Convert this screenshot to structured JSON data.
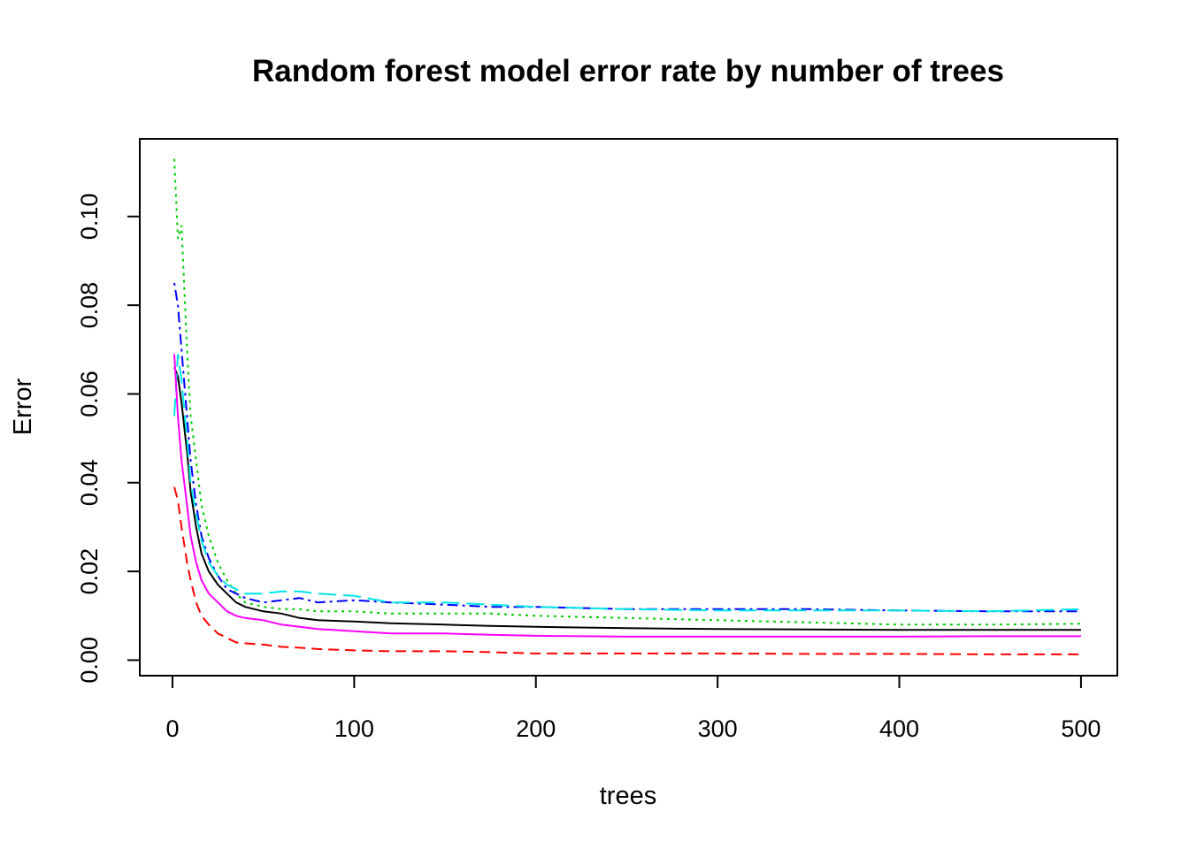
{
  "chart_data": {
    "type": "line",
    "title": "Random forest model error rate by number of trees",
    "xlabel": "trees",
    "ylabel": "Error",
    "xlim": [
      -18,
      520
    ],
    "ylim": [
      -0.0035,
      0.1175
    ],
    "xticks": [
      0,
      100,
      200,
      300,
      400,
      500
    ],
    "xtick_labels": [
      "0",
      "100",
      "200",
      "300",
      "400",
      "500"
    ],
    "yticks": [
      0.0,
      0.02,
      0.04,
      0.06,
      0.08,
      0.1
    ],
    "ytick_labels": [
      "0.00",
      "0.02",
      "0.04",
      "0.06",
      "0.08",
      "0.10"
    ],
    "grid": false,
    "legend": "none",
    "series": [
      {
        "color": "#000000",
        "dash": "solid",
        "points": [
          [
            1,
            0.066
          ],
          [
            3,
            0.064
          ],
          [
            5,
            0.058
          ],
          [
            8,
            0.047
          ],
          [
            10,
            0.038
          ],
          [
            13,
            0.03
          ],
          [
            16,
            0.024
          ],
          [
            20,
            0.02
          ],
          [
            25,
            0.017
          ],
          [
            30,
            0.015
          ],
          [
            35,
            0.013
          ],
          [
            40,
            0.012
          ],
          [
            50,
            0.011
          ],
          [
            60,
            0.0105
          ],
          [
            70,
            0.0095
          ],
          [
            80,
            0.009
          ],
          [
            100,
            0.0087
          ],
          [
            120,
            0.0083
          ],
          [
            150,
            0.008
          ],
          [
            175,
            0.0077
          ],
          [
            200,
            0.0075
          ],
          [
            250,
            0.0072
          ],
          [
            300,
            0.007
          ],
          [
            350,
            0.0069
          ],
          [
            400,
            0.0068
          ],
          [
            450,
            0.0068
          ],
          [
            500,
            0.0068
          ]
        ]
      },
      {
        "color": "#ff0000",
        "dash": "dashed",
        "points": [
          [
            1,
            0.039
          ],
          [
            3,
            0.036
          ],
          [
            5,
            0.03
          ],
          [
            8,
            0.022
          ],
          [
            10,
            0.018
          ],
          [
            13,
            0.013
          ],
          [
            16,
            0.01
          ],
          [
            20,
            0.008
          ],
          [
            25,
            0.006
          ],
          [
            30,
            0.005
          ],
          [
            35,
            0.004
          ],
          [
            40,
            0.0038
          ],
          [
            50,
            0.0035
          ],
          [
            60,
            0.003
          ],
          [
            70,
            0.0028
          ],
          [
            80,
            0.0025
          ],
          [
            100,
            0.0022
          ],
          [
            120,
            0.002
          ],
          [
            150,
            0.002
          ],
          [
            175,
            0.0018
          ],
          [
            200,
            0.0015
          ],
          [
            250,
            0.0015
          ],
          [
            300,
            0.0015
          ],
          [
            350,
            0.0014
          ],
          [
            400,
            0.0014
          ],
          [
            450,
            0.0013
          ],
          [
            500,
            0.0013
          ]
        ]
      },
      {
        "color": "#00cc00",
        "dash": "dotted",
        "points": [
          [
            1,
            0.113
          ],
          [
            3,
            0.095
          ],
          [
            5,
            0.098
          ],
          [
            8,
            0.07
          ],
          [
            10,
            0.055
          ],
          [
            13,
            0.045
          ],
          [
            16,
            0.035
          ],
          [
            20,
            0.028
          ],
          [
            25,
            0.022
          ],
          [
            30,
            0.018
          ],
          [
            35,
            0.015
          ],
          [
            40,
            0.013
          ],
          [
            50,
            0.012
          ],
          [
            60,
            0.0115
          ],
          [
            70,
            0.0115
          ],
          [
            80,
            0.011
          ],
          [
            100,
            0.011
          ],
          [
            120,
            0.0105
          ],
          [
            150,
            0.0105
          ],
          [
            175,
            0.0105
          ],
          [
            200,
            0.01
          ],
          [
            250,
            0.0095
          ],
          [
            300,
            0.009
          ],
          [
            350,
            0.0085
          ],
          [
            400,
            0.008
          ],
          [
            450,
            0.008
          ],
          [
            500,
            0.0082
          ]
        ]
      },
      {
        "color": "#0000ff",
        "dash": "dotdash",
        "points": [
          [
            1,
            0.085
          ],
          [
            3,
            0.08
          ],
          [
            5,
            0.07
          ],
          [
            8,
            0.055
          ],
          [
            10,
            0.045
          ],
          [
            13,
            0.035
          ],
          [
            16,
            0.028
          ],
          [
            20,
            0.023
          ],
          [
            25,
            0.019
          ],
          [
            30,
            0.016
          ],
          [
            35,
            0.015
          ],
          [
            40,
            0.014
          ],
          [
            50,
            0.013
          ],
          [
            60,
            0.0135
          ],
          [
            70,
            0.014
          ],
          [
            80,
            0.013
          ],
          [
            100,
            0.0135
          ],
          [
            120,
            0.013
          ],
          [
            150,
            0.0125
          ],
          [
            175,
            0.012
          ],
          [
            200,
            0.012
          ],
          [
            250,
            0.0115
          ],
          [
            300,
            0.0115
          ],
          [
            350,
            0.0115
          ],
          [
            400,
            0.0112
          ],
          [
            450,
            0.011
          ],
          [
            500,
            0.011
          ]
        ]
      },
      {
        "color": "#00e5e5",
        "dash": "longdash",
        "points": [
          [
            1,
            0.055
          ],
          [
            2,
            0.062
          ],
          [
            3,
            0.069
          ],
          [
            5,
            0.063
          ],
          [
            8,
            0.05
          ],
          [
            10,
            0.04
          ],
          [
            13,
            0.033
          ],
          [
            16,
            0.027
          ],
          [
            20,
            0.022
          ],
          [
            25,
            0.019
          ],
          [
            30,
            0.017
          ],
          [
            35,
            0.016
          ],
          [
            40,
            0.015
          ],
          [
            50,
            0.015
          ],
          [
            60,
            0.0155
          ],
          [
            70,
            0.0155
          ],
          [
            80,
            0.015
          ],
          [
            100,
            0.0145
          ],
          [
            120,
            0.013
          ],
          [
            150,
            0.013
          ],
          [
            175,
            0.0125
          ],
          [
            200,
            0.012
          ],
          [
            250,
            0.0115
          ],
          [
            300,
            0.0112
          ],
          [
            350,
            0.0112
          ],
          [
            400,
            0.0112
          ],
          [
            450,
            0.011
          ],
          [
            500,
            0.0115
          ]
        ]
      },
      {
        "color": "#ff00ff",
        "dash": "solid",
        "points": [
          [
            1,
            0.069
          ],
          [
            3,
            0.055
          ],
          [
            5,
            0.045
          ],
          [
            8,
            0.035
          ],
          [
            10,
            0.028
          ],
          [
            13,
            0.022
          ],
          [
            16,
            0.018
          ],
          [
            20,
            0.015
          ],
          [
            25,
            0.013
          ],
          [
            30,
            0.011
          ],
          [
            35,
            0.01
          ],
          [
            40,
            0.0095
          ],
          [
            50,
            0.009
          ],
          [
            60,
            0.008
          ],
          [
            70,
            0.0075
          ],
          [
            80,
            0.007
          ],
          [
            100,
            0.0065
          ],
          [
            120,
            0.006
          ],
          [
            150,
            0.006
          ],
          [
            175,
            0.0057
          ],
          [
            200,
            0.0055
          ],
          [
            250,
            0.0053
          ],
          [
            300,
            0.0053
          ],
          [
            350,
            0.0053
          ],
          [
            400,
            0.0053
          ],
          [
            450,
            0.0054
          ],
          [
            500,
            0.0054
          ]
        ]
      }
    ]
  }
}
